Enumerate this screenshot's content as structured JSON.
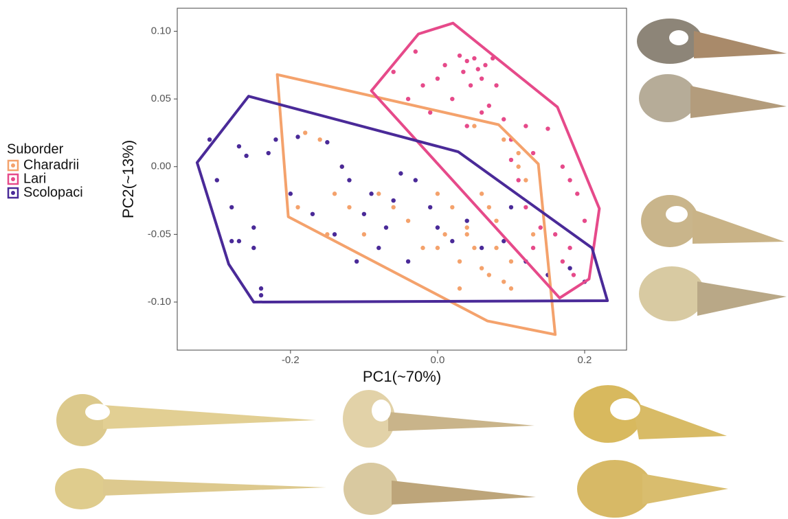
{
  "chart_data": {
    "type": "scatter",
    "x_label": "PC1(~70%)",
    "y_label": "PC2(~13%)",
    "legend_title": "Suborder",
    "legend_position": "left",
    "xlim": [
      -0.354,
      0.257
    ],
    "ylim": [
      -0.1355,
      0.117
    ],
    "xticks": [
      -0.2,
      {
        "value": 0,
        "label": "0.0"
      },
      0.2
    ],
    "yticks": [
      {
        "value": 0.1,
        "label": "0.10"
      },
      0.05,
      {
        "value": 0,
        "label": "0.00"
      },
      -0.05,
      {
        "value": -0.1,
        "label": "-0.10"
      }
    ],
    "grid": false,
    "series": [
      {
        "name": "Charadrii",
        "color": "#f4a26c",
        "x": [
          -0.19,
          -0.18,
          -0.16,
          -0.14,
          -0.13,
          -0.12,
          -0.1,
          -0.08,
          -0.06,
          -0.04,
          -0.02,
          0.0,
          0.01,
          0.02,
          0.03,
          0.04,
          0.05,
          0.06,
          0.07,
          0.08,
          0.09,
          0.1,
          0.11,
          0.12,
          0.13,
          0.1,
          0.08,
          0.06,
          0.05,
          0.04,
          0.09,
          0.11,
          -0.15,
          0.0,
          0.07,
          0.03
        ],
        "y": [
          -0.03,
          0.025,
          0.02,
          -0.02,
          0.0,
          -0.03,
          -0.05,
          -0.02,
          -0.03,
          -0.04,
          -0.06,
          -0.02,
          -0.05,
          -0.03,
          -0.07,
          -0.05,
          -0.06,
          -0.02,
          -0.08,
          -0.06,
          0.02,
          -0.07,
          0.0,
          -0.01,
          -0.05,
          -0.09,
          -0.04,
          -0.075,
          0.03,
          -0.045,
          -0.085,
          0.01,
          -0.05,
          -0.06,
          -0.03,
          -0.09
        ],
        "hull": {
          "x": [
            -0.218,
            0.083,
            0.137,
            0.16,
            0.068,
            -0.203
          ],
          "y": [
            0.068,
            0.031,
            0.002,
            -0.124,
            -0.114,
            -0.037
          ]
        }
      },
      {
        "name": "Lari",
        "color": "#e64a8a",
        "x": [
          -0.06,
          -0.04,
          -0.03,
          -0.02,
          -0.01,
          0.0,
          0.01,
          0.02,
          0.03,
          0.035,
          0.04,
          0.045,
          0.05,
          0.055,
          0.06,
          0.065,
          0.07,
          0.075,
          0.08,
          0.09,
          0.1,
          0.12,
          0.13,
          0.15,
          0.17,
          0.18,
          0.19,
          0.2,
          0.1,
          0.11,
          0.12,
          0.14,
          0.16,
          0.18,
          0.185,
          0.17,
          0.15,
          0.13,
          0.04,
          0.06
        ],
        "y": [
          0.07,
          0.05,
          0.085,
          0.06,
          0.04,
          0.065,
          0.075,
          0.05,
          0.082,
          0.07,
          0.078,
          0.06,
          0.08,
          0.072,
          0.065,
          0.075,
          0.045,
          0.08,
          0.06,
          0.035,
          0.02,
          0.03,
          0.01,
          0.028,
          0.0,
          -0.01,
          -0.02,
          -0.04,
          0.005,
          -0.01,
          -0.03,
          -0.045,
          -0.05,
          -0.06,
          -0.08,
          -0.07,
          -0.08,
          -0.06,
          0.03,
          0.04
        ],
        "hull": {
          "x": [
            -0.09,
            -0.026,
            0.021,
            0.163,
            0.22,
            0.206,
            0.166
          ],
          "y": [
            0.056,
            0.098,
            0.106,
            0.044,
            -0.031,
            -0.083,
            -0.097
          ]
        }
      },
      {
        "name": "Scolopaci",
        "color": "#4a2a98",
        "x": [
          -0.31,
          -0.3,
          -0.28,
          -0.27,
          -0.27,
          -0.26,
          -0.25,
          -0.24,
          -0.23,
          -0.22,
          -0.2,
          -0.19,
          -0.17,
          -0.15,
          -0.14,
          -0.13,
          -0.12,
          -0.11,
          -0.1,
          -0.09,
          -0.08,
          -0.07,
          -0.06,
          -0.04,
          -0.03,
          -0.01,
          0.0,
          0.02,
          0.04,
          0.06,
          0.09,
          0.12,
          0.15,
          0.18,
          0.2,
          -0.25,
          -0.24,
          -0.28,
          0.1,
          -0.05
        ],
        "y": [
          0.02,
          -0.01,
          -0.03,
          0.015,
          -0.055,
          0.008,
          -0.045,
          -0.09,
          0.01,
          0.02,
          -0.02,
          0.022,
          -0.035,
          0.018,
          -0.05,
          0.0,
          -0.01,
          -0.07,
          -0.035,
          -0.02,
          -0.06,
          -0.045,
          -0.025,
          -0.07,
          -0.01,
          -0.03,
          -0.045,
          -0.055,
          -0.04,
          -0.06,
          -0.055,
          -0.07,
          -0.08,
          -0.075,
          -0.085,
          -0.06,
          -0.095,
          -0.055,
          -0.03,
          -0.005
        ],
        "hull": {
          "x": [
            -0.257,
            0.028,
            0.21,
            0.231,
            -0.25,
            -0.284,
            -0.327
          ],
          "y": [
            0.052,
            0.011,
            -0.06,
            -0.099,
            -0.1,
            -0.072,
            0.003
          ]
        }
      }
    ]
  }
}
